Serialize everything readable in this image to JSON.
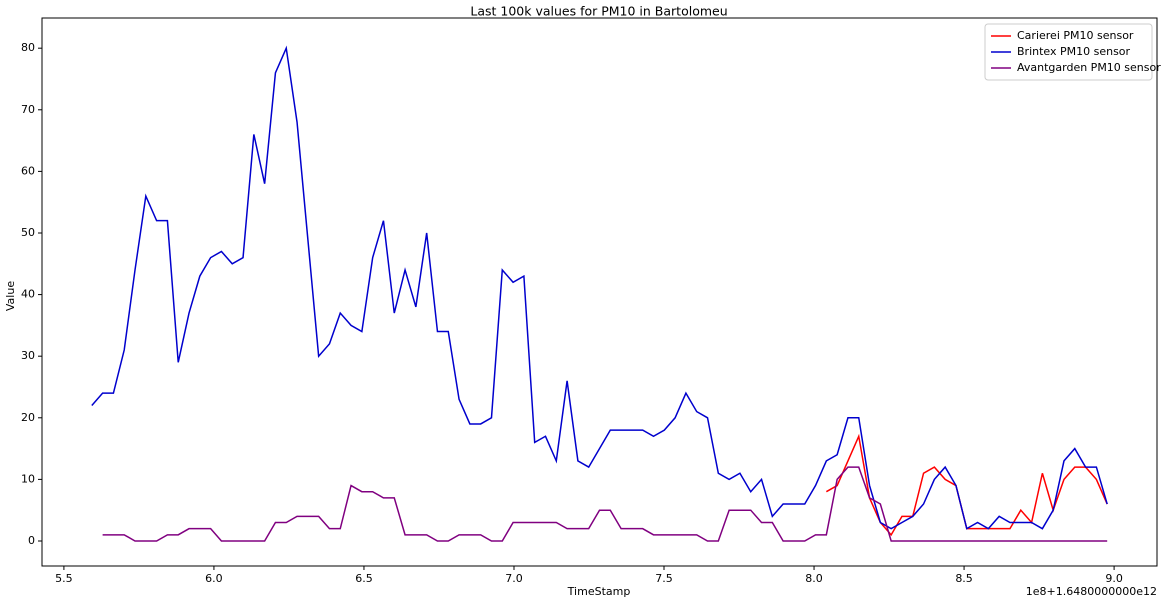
{
  "chart_data": {
    "type": "line",
    "title": "Last 100k values for PM10 in Bartolomeu",
    "x_label": "TimeStamp",
    "y_label": "Value",
    "x_offset_label": "1e8+1.6480000000e12",
    "x": [
      5.593,
      5.629,
      5.665,
      5.701,
      5.737,
      5.773,
      5.809,
      5.845,
      5.881,
      5.917,
      5.953,
      5.989,
      6.025,
      6.061,
      6.097,
      6.133,
      6.169,
      6.205,
      6.241,
      6.277,
      6.313,
      6.349,
      6.385,
      6.421,
      6.457,
      6.493,
      6.529,
      6.565,
      6.601,
      6.637,
      6.673,
      6.709,
      6.745,
      6.781,
      6.817,
      6.853,
      6.889,
      6.925,
      6.961,
      6.997,
      7.033,
      7.069,
      7.105,
      7.141,
      7.177,
      7.213,
      7.249,
      7.285,
      7.321,
      7.357,
      7.393,
      7.429,
      7.465,
      7.501,
      7.537,
      7.573,
      7.609,
      7.645,
      7.681,
      7.717,
      7.753,
      7.789,
      7.825,
      7.861,
      7.897,
      7.933,
      7.969,
      8.005,
      8.041,
      8.077,
      8.113,
      8.149,
      8.185,
      8.221,
      8.257,
      8.293,
      8.329,
      8.365,
      8.401,
      8.437,
      8.473,
      8.509,
      8.545,
      8.581,
      8.617,
      8.653,
      8.689,
      8.725,
      8.761,
      8.797,
      8.833,
      8.869,
      8.905,
      8.941,
      8.977
    ],
    "series": [
      {
        "name": "Carierei PM10 sensor",
        "color": "#ff0000",
        "values": [
          null,
          null,
          null,
          null,
          null,
          null,
          null,
          null,
          null,
          null,
          null,
          null,
          null,
          null,
          null,
          null,
          null,
          null,
          null,
          null,
          null,
          null,
          null,
          null,
          null,
          null,
          null,
          null,
          null,
          null,
          null,
          null,
          null,
          null,
          null,
          null,
          null,
          null,
          null,
          null,
          null,
          null,
          null,
          null,
          null,
          null,
          null,
          null,
          null,
          null,
          null,
          null,
          null,
          null,
          null,
          null,
          null,
          null,
          null,
          null,
          null,
          null,
          null,
          null,
          null,
          null,
          null,
          null,
          8,
          9,
          13,
          17,
          7,
          3,
          1,
          4,
          4,
          11,
          12,
          10,
          9,
          2,
          2,
          2,
          2,
          2,
          5,
          3,
          11,
          5,
          10,
          12,
          12,
          10,
          6
        ]
      },
      {
        "name": "Brintex PM10 sensor",
        "color": "#0000cd",
        "values": [
          22,
          24,
          24,
          31,
          44,
          56,
          52,
          52,
          29,
          37,
          43,
          46,
          47,
          45,
          46,
          66,
          58,
          76,
          80,
          68,
          49,
          30,
          32,
          37,
          35,
          34,
          46,
          52,
          37,
          44,
          38,
          50,
          34,
          34,
          23,
          19,
          19,
          20,
          44,
          42,
          43,
          16,
          17,
          13,
          26,
          13,
          12,
          15,
          18,
          18,
          18,
          18,
          17,
          18,
          20,
          24,
          21,
          20,
          11,
          10,
          11,
          8,
          10,
          4,
          6,
          6,
          6,
          9,
          13,
          14,
          20,
          20,
          9,
          3,
          2,
          3,
          4,
          6,
          10,
          12,
          9,
          2,
          3,
          2,
          4,
          3,
          3,
          3,
          2,
          5,
          13,
          15,
          12,
          12,
          6
        ]
      },
      {
        "name": "Avantgarden PM10 sensor",
        "color": "#800080",
        "values": [
          null,
          1,
          1,
          1,
          0,
          0,
          0,
          1,
          1,
          2,
          2,
          2,
          0,
          0,
          0,
          0,
          0,
          3,
          3,
          4,
          4,
          4,
          2,
          2,
          9,
          8,
          8,
          7,
          7,
          1,
          1,
          1,
          0,
          0,
          1,
          1,
          1,
          0,
          0,
          3,
          3,
          3,
          3,
          3,
          2,
          2,
          2,
          5,
          5,
          2,
          2,
          2,
          1,
          1,
          1,
          1,
          1,
          0,
          0,
          5,
          5,
          5,
          3,
          3,
          0,
          0,
          0,
          1,
          1,
          10,
          12,
          12,
          7,
          6,
          0,
          0,
          0,
          0,
          0,
          0,
          0,
          0,
          0,
          0,
          0,
          0,
          0,
          0,
          0,
          0,
          0,
          0,
          0,
          0,
          0
        ]
      }
    ],
    "xlim": [
      5.427,
      9.143
    ],
    "ylim": [
      -4.06,
      84.9
    ],
    "xticks": [
      5.5,
      {
        "value": 6,
        "label": "6.0"
      },
      6.5,
      {
        "value": 7,
        "label": "7.0"
      },
      7.5,
      {
        "value": 8,
        "label": "8.0"
      },
      8.5,
      {
        "value": 9,
        "label": "9.0"
      }
    ],
    "yticks": [
      0,
      10,
      20,
      30,
      40,
      50,
      60,
      70,
      80
    ],
    "grid": false,
    "legend": "upper right"
  }
}
